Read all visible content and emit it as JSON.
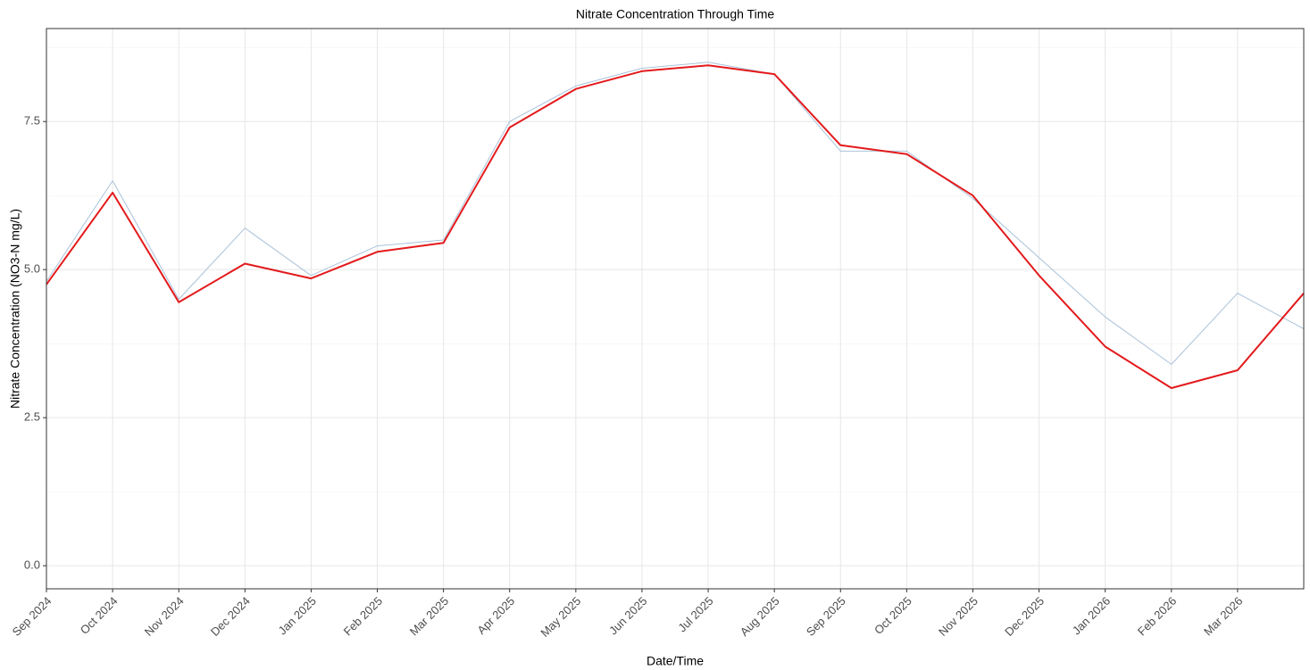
{
  "chart_data": {
    "type": "line",
    "title": "Nitrate Concentration Through Time",
    "x_label": "Date/Time",
    "y_label": "Nitrate Concentration (NO3-N mg/L)",
    "x": [
      "2024-09",
      "2024-10",
      "2024-11",
      "2024-12",
      "2025-01",
      "2025-02",
      "2025-03",
      "2025-04",
      "2025-05",
      "2025-06",
      "2025-07",
      "2025-08",
      "2025-09",
      "2025-10",
      "2025-11",
      "2025-12",
      "2026-01",
      "2026-02",
      "2026-03",
      "2026-04"
    ],
    "series": [
      {
        "color": "#a9c2da",
        "width": 1,
        "values": [
          4.8,
          6.5,
          4.5,
          5.7,
          4.9,
          5.4,
          5.5,
          7.5,
          8.1,
          8.4,
          8.5,
          8.3,
          7.0,
          7.0,
          6.2,
          5.2,
          4.2,
          3.4,
          4.6,
          4.0
        ]
      },
      {
        "color": "#e31a1c",
        "width": 2,
        "values": [
          4.75,
          6.3,
          4.45,
          5.1,
          4.85,
          5.3,
          5.45,
          7.4,
          8.05,
          8.35,
          8.45,
          8.3,
          7.1,
          6.95,
          6.25,
          4.9,
          3.7,
          3.0,
          3.3,
          4.6
        ]
      }
    ],
    "xlim": [
      "2024-09",
      "2026-04"
    ],
    "xticks": [
      {
        "value": "2024-09",
        "label": "Sep 2024"
      },
      {
        "value": "2024-10",
        "label": "Oct 2024"
      },
      {
        "value": "2024-11",
        "label": "Nov 2024"
      },
      {
        "value": "2024-12",
        "label": "Dec 2024"
      },
      {
        "value": "2025-01",
        "label": "Jan 2025"
      },
      {
        "value": "2025-02",
        "label": "Feb 2025"
      },
      {
        "value": "2025-03",
        "label": "Mar 2025"
      },
      {
        "value": "2025-04",
        "label": "Apr 2025"
      },
      {
        "value": "2025-05",
        "label": "May 2025"
      },
      {
        "value": "2025-06",
        "label": "Jun 2025"
      },
      {
        "value": "2025-07",
        "label": "Jul 2025"
      },
      {
        "value": "2025-08",
        "label": "Aug 2025"
      },
      {
        "value": "2025-09",
        "label": "Sep 2025"
      },
      {
        "value": "2025-10",
        "label": "Oct 2025"
      },
      {
        "value": "2025-11",
        "label": "Nov 2025"
      },
      {
        "value": "2025-12",
        "label": "Dec 2025"
      },
      {
        "value": "2026-01",
        "label": "Jan 2026"
      },
      {
        "value": "2026-02",
        "label": "Feb 2026"
      },
      {
        "value": "2026-03",
        "label": "Mar 2026"
      }
    ],
    "ylim": [
      -0.39,
      9.07
    ],
    "yticks": [
      {
        "value": 0,
        "label": "0.0"
      },
      2.5,
      {
        "value": 5,
        "label": "5.0"
      },
      7.5
    ],
    "minor_yticks": [
      1.25,
      3.75,
      6.25,
      8.75
    ],
    "grid": true
  }
}
